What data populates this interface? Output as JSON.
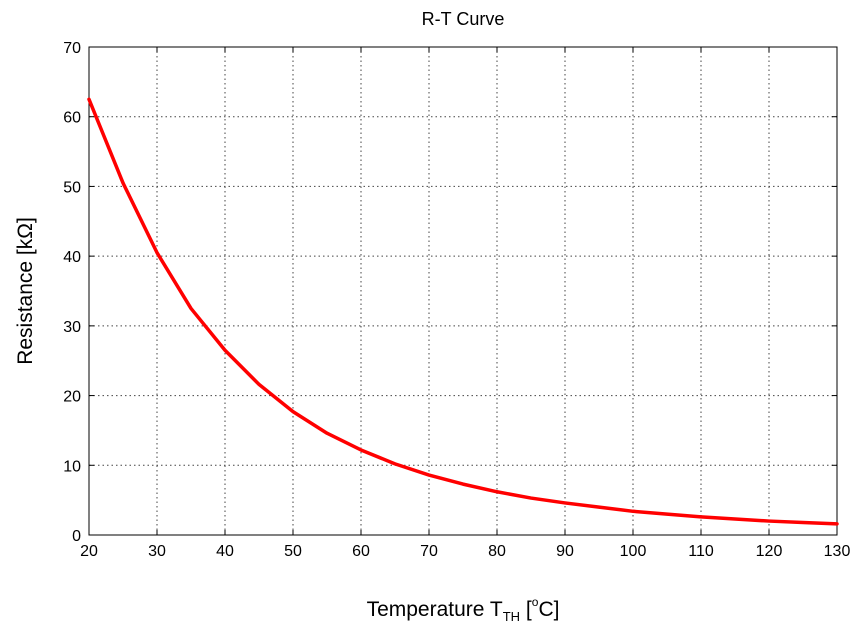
{
  "chart_data": {
    "type": "line",
    "title": "R-T Curve",
    "xlabel": {
      "main": "Temperature T",
      "subscript": "TH",
      "pre": " [",
      "superscript": "o",
      "post": "C]"
    },
    "ylabel": "Resistance [kΩ]",
    "xlim": [
      20,
      130
    ],
    "ylim": [
      0,
      70
    ],
    "xticks": [
      20,
      30,
      40,
      50,
      60,
      70,
      80,
      90,
      100,
      110,
      120,
      130
    ],
    "yticks": [
      0,
      10,
      20,
      30,
      40,
      50,
      60,
      70
    ],
    "grid": true,
    "series": [
      {
        "color": "#ff0000",
        "x": [
          20,
          25,
          30,
          35,
          40,
          45,
          50,
          55,
          60,
          65,
          70,
          75,
          80,
          85,
          90,
          95,
          100,
          105,
          110,
          115,
          120,
          125,
          130
        ],
        "y": [
          62.5,
          50.5,
          40.5,
          32.5,
          26.5,
          21.6,
          17.7,
          14.6,
          12.2,
          10.2,
          8.6,
          7.3,
          6.2,
          5.3,
          4.6,
          4.0,
          3.4,
          3.0,
          2.6,
          2.3,
          2.0,
          1.8,
          1.6
        ]
      }
    ]
  }
}
